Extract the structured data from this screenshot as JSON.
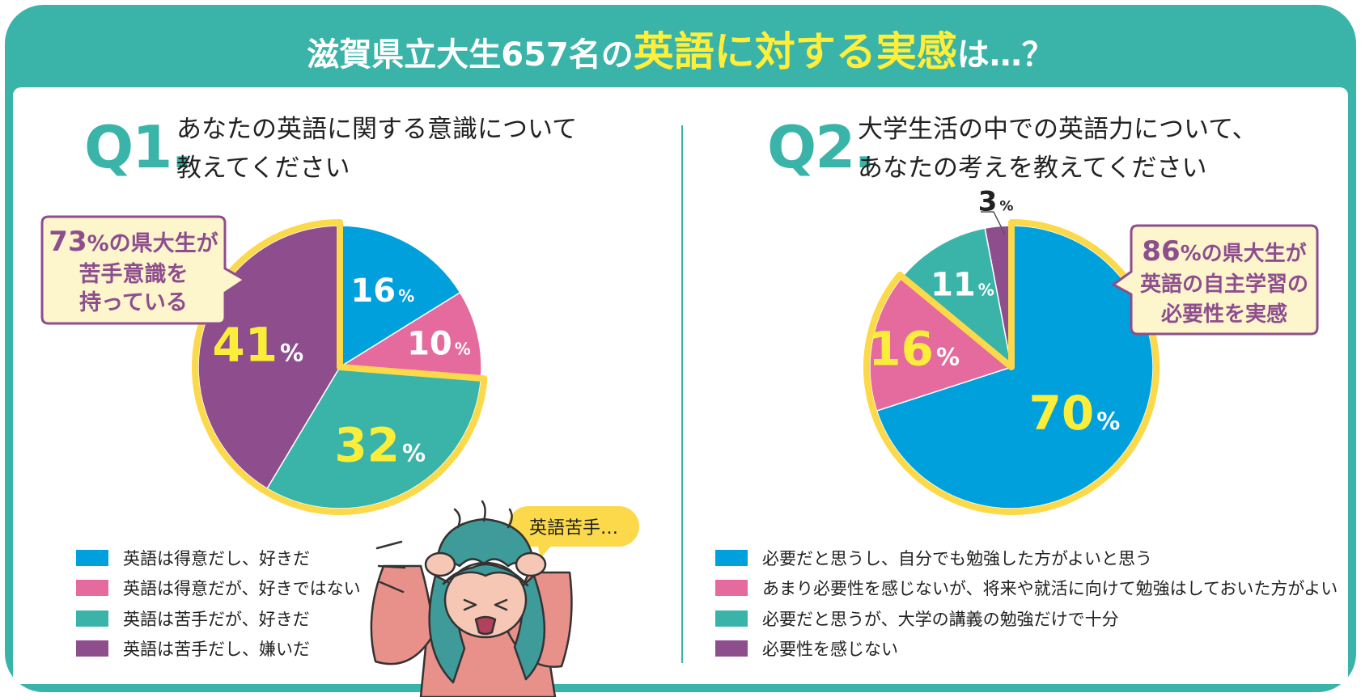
{
  "title": {
    "part1": "滋賀県立大生657名の",
    "part2": "英語に対する実感",
    "part3": "は…？"
  },
  "colors": {
    "teal": "#3ab4a8",
    "blue": "#00a0dc",
    "pink": "#e56a9d",
    "purple": "#8e4e8e",
    "yellow": "#fbd94a",
    "highlight": "#fbee3a",
    "callout_bg": "#fdf5cc"
  },
  "q1": {
    "number": "Q1.",
    "text_line1": "あなたの英語に関する意識について",
    "text_line2": "教えてください",
    "callout": {
      "line1_num": "73",
      "line1_rest": "%の県大生が",
      "line2": "苦手意識を",
      "line3": "持っている"
    },
    "legend": [
      {
        "label": "英語は得意だし、好きだ",
        "color": "#00a0dc"
      },
      {
        "label": "英語は得意だが、好きではない",
        "color": "#e56a9d"
      },
      {
        "label": "英語は苦手だが、好きだ",
        "color": "#3ab4a8"
      },
      {
        "label": "英語は苦手だし、嫌いだ",
        "color": "#8e4e8e"
      }
    ]
  },
  "q2": {
    "number": "Q2.",
    "text_line1": "大学生活の中での英語力について、",
    "text_line2": "あなたの考えを教えてください",
    "callout": {
      "line1_num": "86",
      "line1_rest": "%の県大生が",
      "line2": "英語の自主学習の",
      "line3": "必要性を実感"
    },
    "legend": [
      {
        "label": "必要だと思うし、自分でも勉強した方がよいと思う",
        "color": "#00a0dc"
      },
      {
        "label": "あまり必要性を感じないが、将来や就活に向けて勉強はしておいた方がよい",
        "color": "#e56a9d"
      },
      {
        "label": "必要だと思うが、大学の講義の勉強だけで十分",
        "color": "#3ab4a8"
      },
      {
        "label": "必要性を感じない",
        "color": "#8e4e8e"
      }
    ]
  },
  "speech_bubble": "英語苦手…",
  "chart_data": [
    {
      "type": "pie",
      "title": "あなたの英語に関する意識について教えてください",
      "categories": [
        "英語は得意だし、好きだ",
        "英語は得意だが、好きではない",
        "英語は苦手だが、好きだ",
        "英語は苦手だし、嫌いだ"
      ],
      "values": [
        16,
        10,
        32,
        41
      ],
      "labels": [
        "16",
        "10",
        "32",
        "41"
      ],
      "unit": "%",
      "colors": [
        "#00a0dc",
        "#e56a9d",
        "#3ab4a8",
        "#8e4e8e"
      ],
      "highlighted": [
        2,
        3
      ],
      "legend_position": "bottom"
    },
    {
      "type": "pie",
      "title": "大学生活の中での英語力について、あなたの考えを教えてください",
      "categories": [
        "必要だと思うし、自分でも勉強した方がよいと思う",
        "あまり必要性を感じないが、将来や就活に向けて勉強はしておいた方がよい",
        "必要だと思うが、大学の講義の勉強だけで十分",
        "必要性を感じない"
      ],
      "values": [
        70,
        16,
        11,
        3
      ],
      "labels": [
        "70",
        "16",
        "11",
        "3"
      ],
      "unit": "%",
      "colors": [
        "#00a0dc",
        "#e56a9d",
        "#3ab4a8",
        "#8e4e8e"
      ],
      "highlighted": [
        0,
        1
      ],
      "legend_position": "bottom"
    }
  ]
}
